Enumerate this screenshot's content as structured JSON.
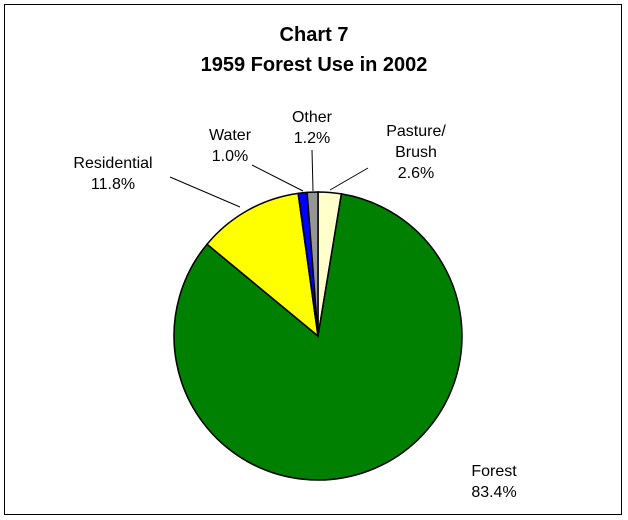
{
  "chart_data": {
    "type": "pie",
    "title": "Chart 7",
    "subtitle": "1959 Forest Use in 2002",
    "slices": [
      {
        "label_lines": [
          "Pasture/",
          "Brush"
        ],
        "value_label": "2.6%",
        "value": 2.6,
        "color": "#ffffcc"
      },
      {
        "label_lines": [
          "Forest"
        ],
        "value_label": "83.4%",
        "value": 83.4,
        "color": "#008000"
      },
      {
        "label_lines": [
          "Residential"
        ],
        "value_label": "11.8%",
        "value": 11.8,
        "color": "#ffff00"
      },
      {
        "label_lines": [
          "Water"
        ],
        "value_label": "1.0%",
        "value": 1.0,
        "color": "#0000ff"
      },
      {
        "label_lines": [
          "Other"
        ],
        "value_label": "1.2%",
        "value": 1.2,
        "color": "#969696"
      }
    ]
  }
}
